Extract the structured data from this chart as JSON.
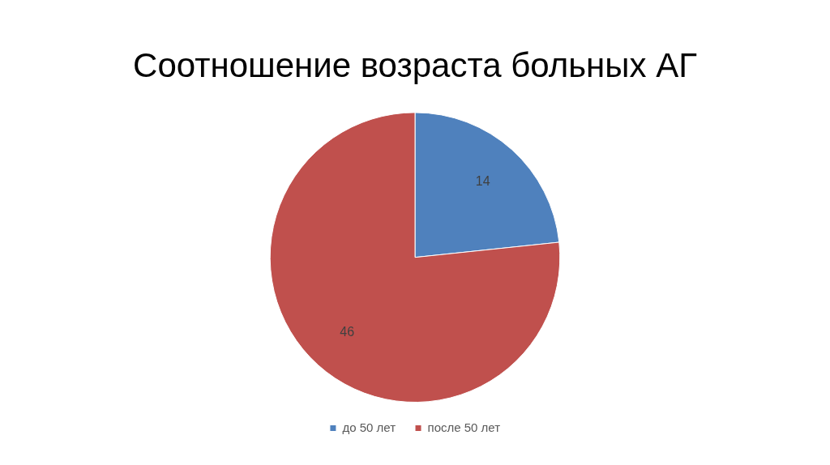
{
  "chart_data": {
    "type": "pie",
    "title": "Соотношение возраста больных АГ",
    "categories": [
      "до 50 лет",
      "после 50 лет"
    ],
    "values": [
      14,
      46
    ],
    "colors": [
      "#4f81bd",
      "#c0504d"
    ],
    "data_labels": true,
    "legend": "bottom"
  }
}
